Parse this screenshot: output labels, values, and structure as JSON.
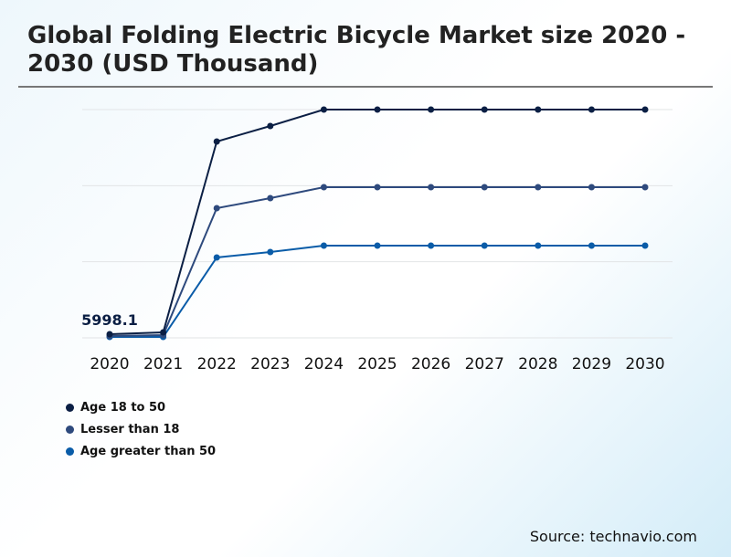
{
  "title": "Global Folding Electric Bicycle Market size 2020 - 2030 (USD Thousand)",
  "source": "Source: technavio.com",
  "chart_data": {
    "type": "line",
    "title": "Global Folding Electric Bicycle Market size 2020 - 2030 (USD Thousand)",
    "x": [
      "2020",
      "2021",
      "2022",
      "2023",
      "2024",
      "2025",
      "2026",
      "2027",
      "2028",
      "2029",
      "2030"
    ],
    "ylim": [
      0,
      375000
    ],
    "grid": true,
    "legend": "bottom-left",
    "series": [
      {
        "name": "Age 18 to 50",
        "color": "#0b1f44",
        "values": [
          5998.1,
          9000,
          322500,
          348000,
          375000,
          375000,
          375000,
          375000,
          375000,
          375000,
          375000
        ]
      },
      {
        "name": "Lesser than 18",
        "color": "#2e4a7d",
        "values": [
          3000,
          4500,
          213000,
          229500,
          247500,
          247500,
          247500,
          247500,
          247500,
          247500,
          247500
        ]
      },
      {
        "name": "Age greater than 50",
        "color": "#0a5ca8",
        "values": [
          1500,
          1500,
          132000,
          141000,
          151500,
          151500,
          151500,
          151500,
          151500,
          151500,
          151500
        ]
      }
    ],
    "data_labels": [
      {
        "series": 0,
        "x": "2020",
        "text": "5998.1"
      }
    ]
  }
}
